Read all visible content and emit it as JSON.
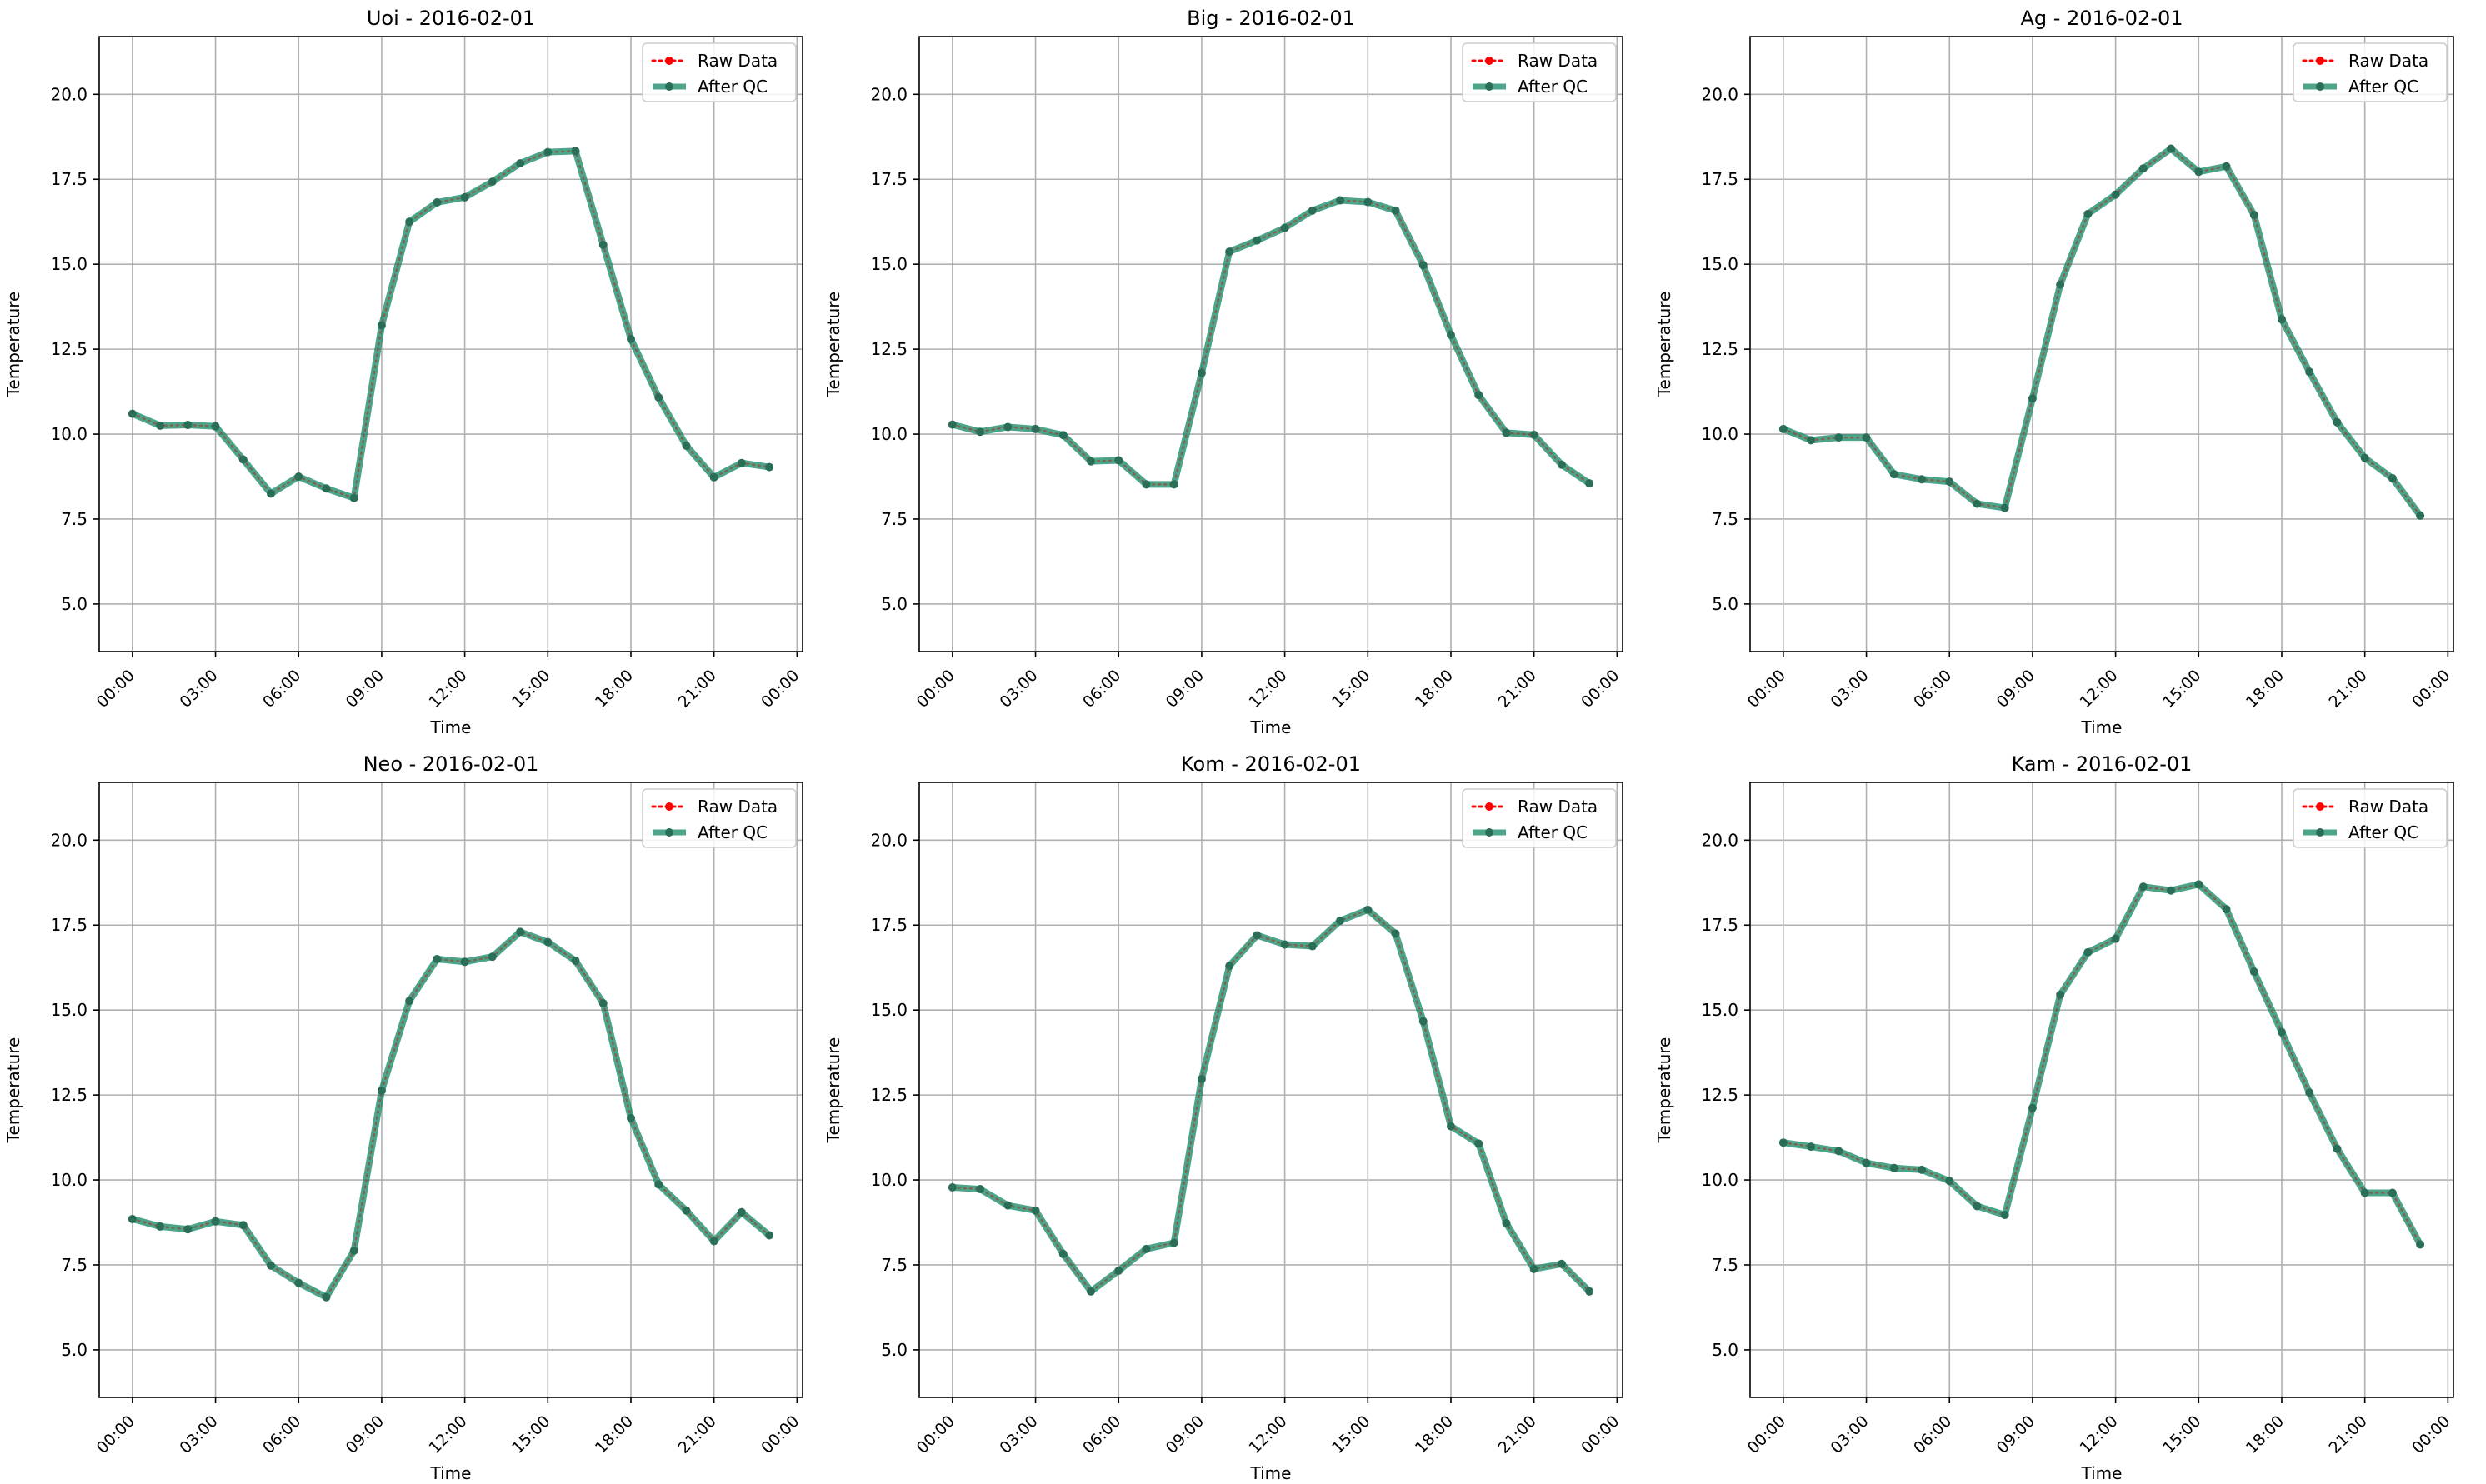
{
  "chart_data": [
    {
      "type": "line",
      "title": "Uoi - 2016-02-01",
      "xlabel": "Time",
      "ylabel": "Temperature",
      "x": [
        "00:00",
        "01:00",
        "02:00",
        "03:00",
        "04:00",
        "05:00",
        "06:00",
        "07:00",
        "08:00",
        "09:00",
        "10:00",
        "11:00",
        "12:00",
        "13:00",
        "14:00",
        "15:00",
        "16:00",
        "17:00",
        "18:00",
        "19:00",
        "20:00",
        "21:00",
        "22:00",
        "23:00"
      ],
      "xticks": [
        "00:00",
        "03:00",
        "06:00",
        "09:00",
        "12:00",
        "15:00",
        "18:00",
        "21:00",
        "00:00"
      ],
      "yticks": [
        "5.0",
        "7.5",
        "10.0",
        "12.5",
        "15.0",
        "17.5",
        "20.0"
      ],
      "xlim_hours": [
        -1.2,
        24.2
      ],
      "ylim": [
        3.6,
        21.7
      ],
      "grid": true,
      "legend": "top-right",
      "series": [
        {
          "name": "Raw Data",
          "color": "#ff0000",
          "style": "dotted",
          "values": [
            10.6,
            10.25,
            10.27,
            10.23,
            9.25,
            8.25,
            8.75,
            8.4,
            8.12,
            13.2,
            16.25,
            16.82,
            16.97,
            17.43,
            17.97,
            18.3,
            18.33,
            15.57,
            12.8,
            11.08,
            9.66,
            8.73,
            9.15,
            9.03
          ]
        },
        {
          "name": "After QC",
          "color": "#1a8a6a",
          "style": "solid",
          "values": [
            10.6,
            10.25,
            10.27,
            10.23,
            9.25,
            8.25,
            8.75,
            8.4,
            8.12,
            13.2,
            16.25,
            16.82,
            16.97,
            17.43,
            17.97,
            18.3,
            18.33,
            15.57,
            12.8,
            11.08,
            9.66,
            8.73,
            9.15,
            9.03
          ]
        }
      ]
    },
    {
      "type": "line",
      "title": "Big - 2016-02-01",
      "xlabel": "Time",
      "ylabel": "Temperature",
      "x": [
        "00:00",
        "01:00",
        "02:00",
        "03:00",
        "04:00",
        "05:00",
        "06:00",
        "07:00",
        "08:00",
        "09:00",
        "10:00",
        "11:00",
        "12:00",
        "13:00",
        "14:00",
        "15:00",
        "16:00",
        "17:00",
        "18:00",
        "19:00",
        "20:00",
        "21:00",
        "22:00",
        "23:00"
      ],
      "xticks": [
        "00:00",
        "03:00",
        "06:00",
        "09:00",
        "12:00",
        "15:00",
        "18:00",
        "21:00",
        "00:00"
      ],
      "yticks": [
        "5.0",
        "7.5",
        "10.0",
        "12.5",
        "15.0",
        "17.5",
        "20.0"
      ],
      "xlim_hours": [
        -1.2,
        24.2
      ],
      "ylim": [
        3.6,
        21.7
      ],
      "grid": true,
      "legend": "top-right",
      "series": [
        {
          "name": "Raw Data",
          "color": "#ff0000",
          "style": "dotted",
          "values": [
            10.28,
            10.07,
            10.21,
            10.15,
            9.97,
            9.2,
            9.23,
            8.52,
            8.52,
            11.8,
            15.37,
            15.7,
            16.07,
            16.58,
            16.88,
            16.83,
            16.58,
            14.97,
            12.92,
            11.15,
            10.04,
            9.98,
            9.1,
            8.55
          ]
        },
        {
          "name": "After QC",
          "color": "#1a8a6a",
          "style": "solid",
          "values": [
            10.28,
            10.07,
            10.21,
            10.15,
            9.97,
            9.2,
            9.23,
            8.52,
            8.52,
            11.8,
            15.37,
            15.7,
            16.07,
            16.58,
            16.88,
            16.83,
            16.58,
            14.97,
            12.92,
            11.15,
            10.04,
            9.98,
            9.1,
            8.55
          ]
        }
      ]
    },
    {
      "type": "line",
      "title": "Ag - 2016-02-01",
      "xlabel": "Time",
      "ylabel": "Temperature",
      "x": [
        "00:00",
        "01:00",
        "02:00",
        "03:00",
        "04:00",
        "05:00",
        "06:00",
        "07:00",
        "08:00",
        "09:00",
        "10:00",
        "11:00",
        "12:00",
        "13:00",
        "14:00",
        "15:00",
        "16:00",
        "17:00",
        "18:00",
        "19:00",
        "20:00",
        "21:00",
        "22:00",
        "23:00"
      ],
      "xticks": [
        "00:00",
        "03:00",
        "06:00",
        "09:00",
        "12:00",
        "15:00",
        "18:00",
        "21:00",
        "00:00"
      ],
      "yticks": [
        "5.0",
        "7.5",
        "10.0",
        "12.5",
        "15.0",
        "17.5",
        "20.0"
      ],
      "xlim_hours": [
        -1.2,
        24.2
      ],
      "ylim": [
        3.6,
        21.7
      ],
      "grid": true,
      "legend": "top-right",
      "series": [
        {
          "name": "Raw Data",
          "color": "#ff0000",
          "style": "dotted",
          "values": [
            10.15,
            9.82,
            9.9,
            9.9,
            8.82,
            8.67,
            8.6,
            7.95,
            7.83,
            11.05,
            14.4,
            16.48,
            17.05,
            17.82,
            18.4,
            17.72,
            17.88,
            16.45,
            13.38,
            11.83,
            10.35,
            9.3,
            8.7,
            7.6
          ]
        },
        {
          "name": "After QC",
          "color": "#1a8a6a",
          "style": "solid",
          "values": [
            10.15,
            9.82,
            9.9,
            9.9,
            8.82,
            8.67,
            8.6,
            7.95,
            7.83,
            11.05,
            14.4,
            16.48,
            17.05,
            17.82,
            18.4,
            17.72,
            17.88,
            16.45,
            13.38,
            11.83,
            10.35,
            9.3,
            8.7,
            7.6
          ]
        }
      ]
    },
    {
      "type": "line",
      "title": "Neo - 2016-02-01",
      "xlabel": "Time",
      "ylabel": "Temperature",
      "x": [
        "00:00",
        "01:00",
        "02:00",
        "03:00",
        "04:00",
        "05:00",
        "06:00",
        "07:00",
        "08:00",
        "09:00",
        "10:00",
        "11:00",
        "12:00",
        "13:00",
        "14:00",
        "15:00",
        "16:00",
        "17:00",
        "18:00",
        "19:00",
        "20:00",
        "21:00",
        "22:00",
        "23:00"
      ],
      "xticks": [
        "00:00",
        "03:00",
        "06:00",
        "09:00",
        "12:00",
        "15:00",
        "18:00",
        "21:00",
        "00:00"
      ],
      "yticks": [
        "5.0",
        "7.5",
        "10.0",
        "12.5",
        "15.0",
        "17.5",
        "20.0"
      ],
      "xlim_hours": [
        -1.2,
        24.2
      ],
      "ylim": [
        3.6,
        21.7
      ],
      "grid": true,
      "legend": "top-right",
      "series": [
        {
          "name": "Raw Data",
          "color": "#ff0000",
          "style": "dotted",
          "values": [
            8.85,
            8.63,
            8.55,
            8.78,
            8.67,
            7.48,
            6.97,
            6.55,
            7.92,
            12.63,
            15.27,
            16.5,
            16.42,
            16.57,
            17.3,
            17.0,
            16.45,
            15.2,
            11.82,
            9.87,
            9.1,
            8.2,
            9.05,
            8.37
          ]
        },
        {
          "name": "After QC",
          "color": "#1a8a6a",
          "style": "solid",
          "values": [
            8.85,
            8.63,
            8.55,
            8.78,
            8.67,
            7.48,
            6.97,
            6.55,
            7.92,
            12.63,
            15.27,
            16.5,
            16.42,
            16.57,
            17.3,
            17.0,
            16.45,
            15.2,
            11.82,
            9.87,
            9.1,
            8.2,
            9.05,
            8.37
          ]
        }
      ]
    },
    {
      "type": "line",
      "title": "Kom - 2016-02-01",
      "xlabel": "Time",
      "ylabel": "Temperature",
      "x": [
        "00:00",
        "01:00",
        "02:00",
        "03:00",
        "04:00",
        "05:00",
        "06:00",
        "07:00",
        "08:00",
        "09:00",
        "10:00",
        "11:00",
        "12:00",
        "13:00",
        "14:00",
        "15:00",
        "16:00",
        "17:00",
        "18:00",
        "19:00",
        "20:00",
        "21:00",
        "22:00",
        "23:00"
      ],
      "xticks": [
        "00:00",
        "03:00",
        "06:00",
        "09:00",
        "12:00",
        "15:00",
        "18:00",
        "21:00",
        "00:00"
      ],
      "yticks": [
        "5.0",
        "7.5",
        "10.0",
        "12.5",
        "15.0",
        "17.5",
        "20.0"
      ],
      "xlim_hours": [
        -1.2,
        24.2
      ],
      "ylim": [
        3.6,
        21.7
      ],
      "grid": true,
      "legend": "top-right",
      "series": [
        {
          "name": "Raw Data",
          "color": "#ff0000",
          "style": "dotted",
          "values": [
            9.78,
            9.73,
            9.25,
            9.1,
            7.82,
            6.72,
            7.33,
            7.97,
            8.15,
            12.97,
            16.3,
            17.2,
            16.93,
            16.88,
            17.63,
            17.95,
            17.25,
            14.67,
            11.58,
            11.07,
            8.73,
            7.38,
            7.53,
            6.72
          ]
        },
        {
          "name": "After QC",
          "color": "#1a8a6a",
          "style": "solid",
          "values": [
            9.78,
            9.73,
            9.25,
            9.1,
            7.82,
            6.72,
            7.33,
            7.97,
            8.15,
            12.97,
            16.3,
            17.2,
            16.93,
            16.88,
            17.63,
            17.95,
            17.25,
            14.67,
            11.58,
            11.07,
            8.73,
            7.38,
            7.53,
            6.72
          ]
        }
      ]
    },
    {
      "type": "line",
      "title": "Kam - 2016-02-01",
      "xlabel": "Time",
      "ylabel": "Temperature",
      "x": [
        "00:00",
        "01:00",
        "02:00",
        "03:00",
        "04:00",
        "05:00",
        "06:00",
        "07:00",
        "08:00",
        "09:00",
        "10:00",
        "11:00",
        "12:00",
        "13:00",
        "14:00",
        "15:00",
        "16:00",
        "17:00",
        "18:00",
        "19:00",
        "20:00",
        "21:00",
        "22:00",
        "23:00"
      ],
      "xticks": [
        "00:00",
        "03:00",
        "06:00",
        "09:00",
        "12:00",
        "15:00",
        "18:00",
        "21:00",
        "00:00"
      ],
      "yticks": [
        "5.0",
        "7.5",
        "10.0",
        "12.5",
        "15.0",
        "17.5",
        "20.0"
      ],
      "xlim_hours": [
        -1.2,
        24.2
      ],
      "ylim": [
        3.6,
        21.7
      ],
      "grid": true,
      "legend": "top-right",
      "series": [
        {
          "name": "Raw Data",
          "color": "#ff0000",
          "style": "dotted",
          "values": [
            11.1,
            10.98,
            10.85,
            10.5,
            10.35,
            10.3,
            9.97,
            9.23,
            8.97,
            12.12,
            15.45,
            16.7,
            17.1,
            18.63,
            18.52,
            18.7,
            17.97,
            16.13,
            14.35,
            12.57,
            10.92,
            9.62,
            9.62,
            8.1
          ]
        },
        {
          "name": "After QC",
          "color": "#1a8a6a",
          "style": "solid",
          "values": [
            11.1,
            10.98,
            10.85,
            10.5,
            10.35,
            10.3,
            9.97,
            9.23,
            8.97,
            12.12,
            15.45,
            16.7,
            17.1,
            18.63,
            18.52,
            18.7,
            17.97,
            16.13,
            14.35,
            12.57,
            10.92,
            9.62,
            9.62,
            8.1
          ]
        }
      ]
    }
  ]
}
